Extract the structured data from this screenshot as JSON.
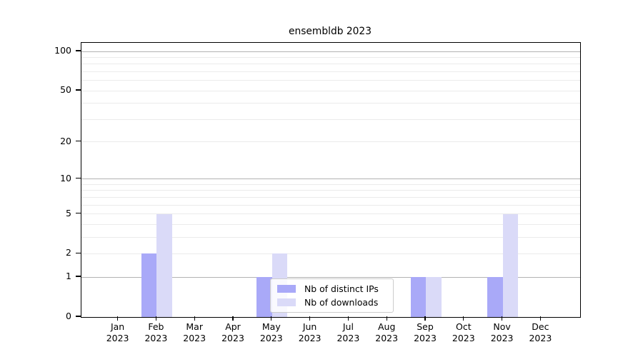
{
  "chart_data": {
    "type": "bar",
    "title": "ensembldb 2023",
    "x_year": "2023",
    "categories": [
      "Jan",
      "Feb",
      "Mar",
      "Apr",
      "May",
      "Jun",
      "Jul",
      "Aug",
      "Sep",
      "Oct",
      "Nov",
      "Dec"
    ],
    "series": [
      {
        "name": "Nb of distinct IPs",
        "color": "#a9a9f8",
        "values": [
          0,
          2,
          0,
          0,
          1,
          0,
          0,
          0,
          1,
          0,
          1,
          0
        ]
      },
      {
        "name": "Nb of downloads",
        "color": "#dadaf8",
        "values": [
          0,
          5,
          0,
          0,
          2,
          0,
          0,
          0,
          1,
          0,
          5,
          0
        ]
      }
    ],
    "xlabel": "",
    "ylabel": "",
    "yscale": "log1p",
    "ylim": [
      0,
      116
    ],
    "yticks_labeled": [
      0,
      1,
      2,
      5,
      10,
      20,
      50,
      100
    ],
    "ygrid_major": [
      1,
      10,
      100
    ],
    "ygrid_minor": [
      2,
      3,
      4,
      5,
      6,
      7,
      8,
      9,
      20,
      30,
      40,
      50,
      60,
      70,
      80,
      90
    ],
    "grid": true,
    "legend_position": "lower center"
  },
  "colors": {
    "bar_distinct_ips": "#a9a9f8",
    "bar_downloads": "#dadaf8",
    "grid_major": "#b2b2b2",
    "grid_minor": "#ebebeb",
    "axis": "#000000",
    "legend_border": "#cccccc"
  }
}
